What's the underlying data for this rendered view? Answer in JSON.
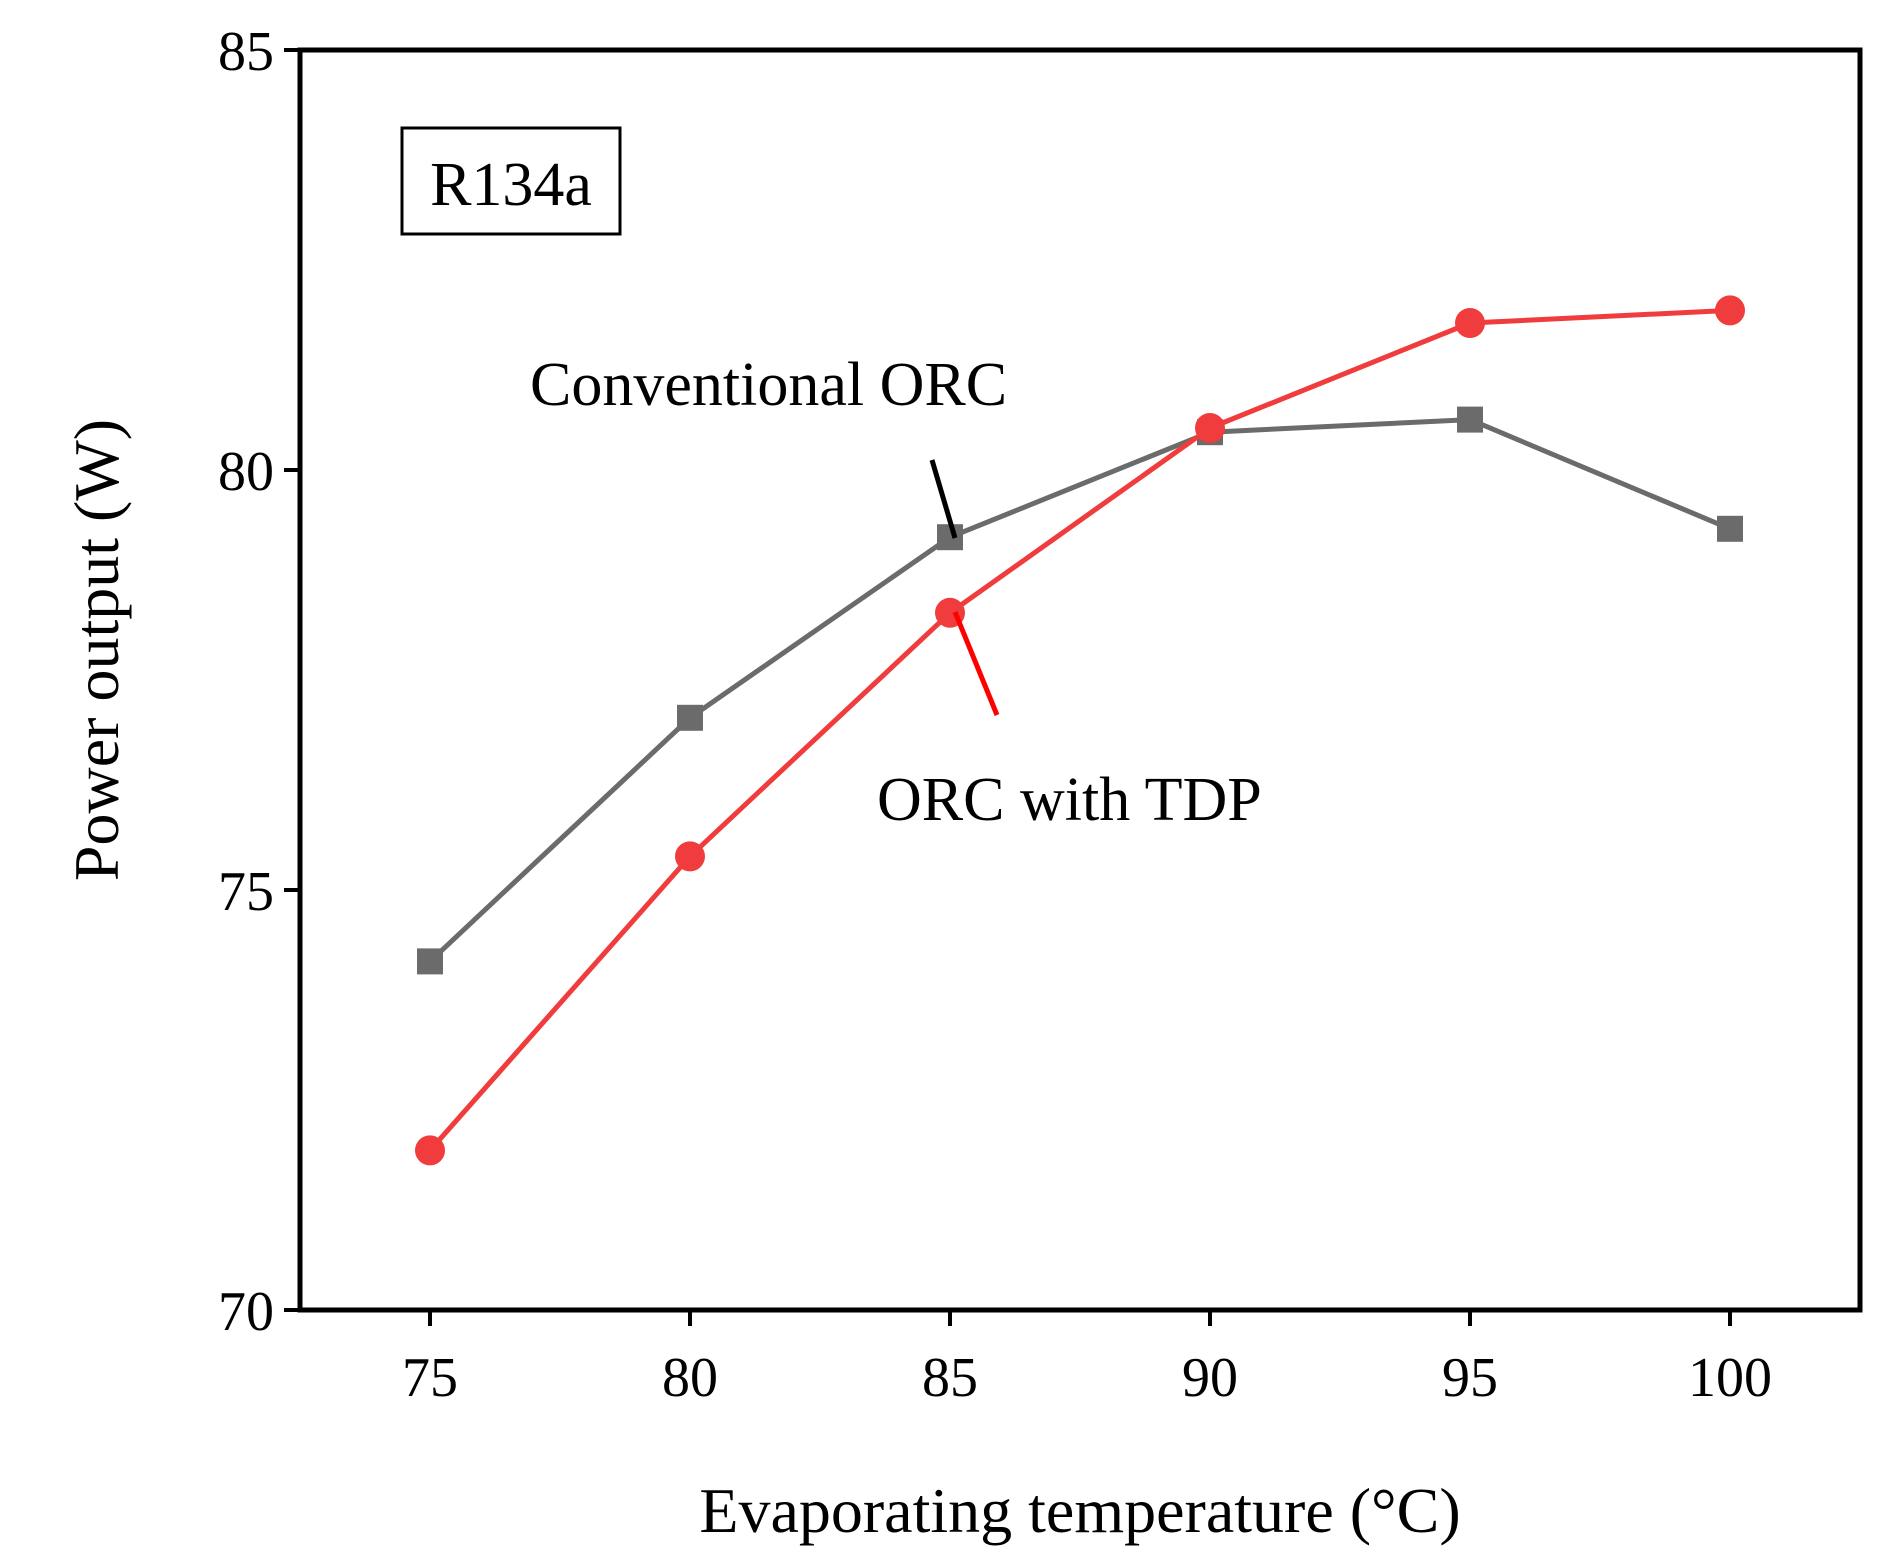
{
  "chart_data": {
    "type": "line",
    "title": "",
    "xlabel": "Evaporating temperature (°C)",
    "ylabel": "Power output (W)",
    "x": [
      75,
      80,
      85,
      90,
      95,
      100
    ],
    "x_ticks": [
      "75",
      "80",
      "85",
      "90",
      "95",
      "100"
    ],
    "xlim": [
      72.5,
      102.5
    ],
    "ylim": [
      70,
      85
    ],
    "y_ticks": [
      "70",
      "75",
      "80",
      "85"
    ],
    "grid": false,
    "label_box": "R134a",
    "series": [
      {
        "name": "Conventional ORC",
        "marker": "square",
        "color": "#6b6b6b",
        "values": [
          74.15,
          77.05,
          79.2,
          80.45,
          80.6,
          79.3
        ]
      },
      {
        "name": "ORC with TDP",
        "marker": "circle",
        "color": "#f03c3c",
        "values": [
          71.9,
          75.4,
          78.3,
          80.5,
          81.75,
          81.9
        ]
      }
    ],
    "annotations": [
      {
        "text": "Conventional ORC",
        "series": "Conventional ORC",
        "leader_color": "#000000"
      },
      {
        "text": "ORC with TDP",
        "series": "ORC with TDP",
        "leader_color": "#ff0000"
      }
    ]
  }
}
